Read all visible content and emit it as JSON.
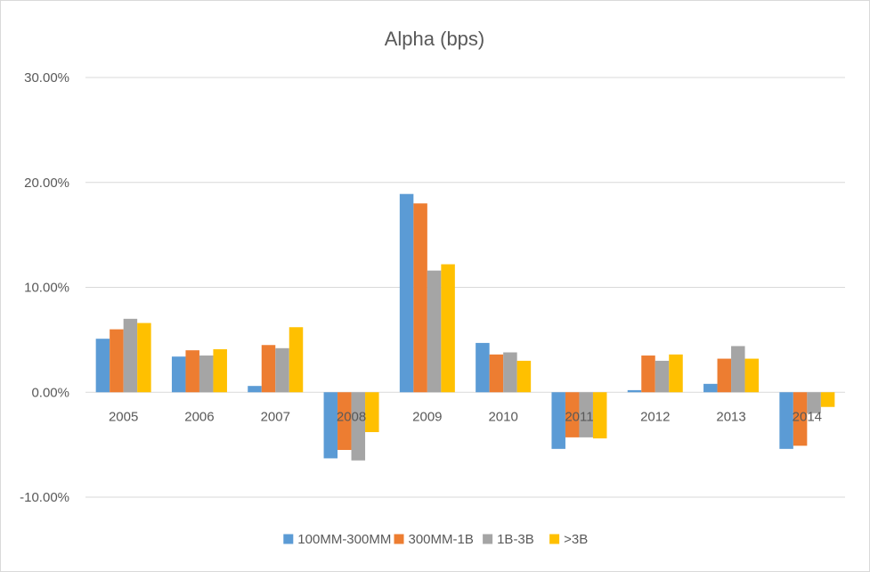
{
  "chart_data": {
    "type": "bar",
    "title": "Alpha (bps)",
    "xlabel": "",
    "ylabel": "",
    "ylim": [
      -0.1,
      0.3
    ],
    "yticks": [
      -0.1,
      0,
      0.1,
      0.2,
      0.3
    ],
    "ytick_labels": [
      "-10.00%",
      "0.00%",
      "10.00%",
      "20.00%",
      "30.00%"
    ],
    "grid": true,
    "legend_position": "bottom",
    "categories": [
      "2005",
      "2006",
      "2007",
      "2008",
      "2009",
      "2010",
      "2011",
      "2012",
      "2013",
      "2014"
    ],
    "series": [
      {
        "name": "100MM-300MM",
        "color": "#5b9bd5",
        "values": [
          0.051,
          0.034,
          0.006,
          -0.063,
          0.189,
          0.047,
          -0.054,
          0.002,
          0.008,
          -0.054
        ]
      },
      {
        "name": "300MM-1B",
        "color": "#ed7d31",
        "values": [
          0.06,
          0.04,
          0.045,
          -0.055,
          0.18,
          0.036,
          -0.043,
          0.035,
          0.032,
          -0.051
        ]
      },
      {
        "name": "1B-3B",
        "color": "#a5a5a5",
        "values": [
          0.07,
          0.035,
          0.042,
          -0.065,
          0.116,
          0.038,
          -0.043,
          0.03,
          0.044,
          -0.02
        ]
      },
      {
        "name": ">3B",
        "color": "#ffc000",
        "values": [
          0.066,
          0.041,
          0.062,
          -0.038,
          0.122,
          0.03,
          -0.044,
          0.036,
          0.032,
          -0.014
        ]
      }
    ]
  },
  "colors": {
    "gridline": "#d9d9d9",
    "axis_text": "#595959"
  }
}
